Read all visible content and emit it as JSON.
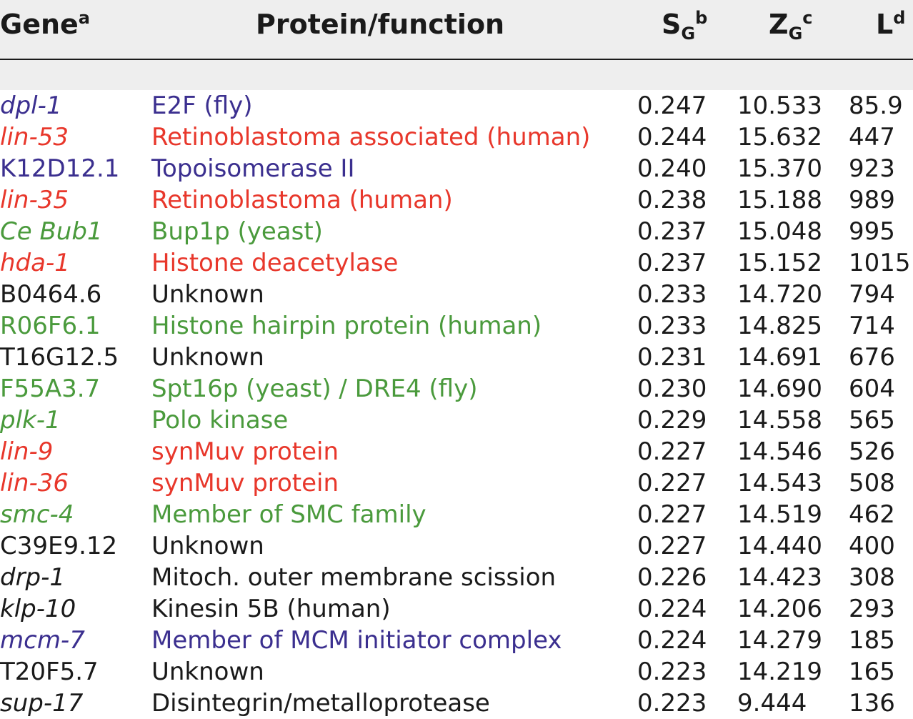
{
  "colors": {
    "red": "#e8372b",
    "purple": "#3b2f8f",
    "green": "#4a9a3c",
    "black": "#1a1a1a",
    "header_bg": "#eeeeee"
  },
  "header": {
    "gene": "Gene",
    "gene_sup": "a",
    "protein": "Protein/function",
    "s_main": "S",
    "s_sub": "G",
    "s_sup": "b",
    "z_main": "Z",
    "z_sub": "G",
    "z_sup": "c",
    "l_main": "L",
    "l_sup": "d"
  },
  "rows": [
    {
      "gene": "dpl-1",
      "italic": true,
      "protein": "E2F (fly)",
      "color": "purple",
      "s": "0.247",
      "z": "10.533",
      "l": "85.9"
    },
    {
      "gene": "lin-53",
      "italic": true,
      "protein": "Retinoblastoma associated (human)",
      "color": "red",
      "s": "0.244",
      "z": "15.632",
      "l": "447"
    },
    {
      "gene": "K12D12.1",
      "italic": false,
      "protein": "Topoisomerase II",
      "color": "purple",
      "s": "0.240",
      "z": "15.370",
      "l": "923"
    },
    {
      "gene": "lin-35",
      "italic": true,
      "protein": "Retinoblastoma (human)",
      "color": "red",
      "s": "0.238",
      "z": "15.188",
      "l": "989"
    },
    {
      "gene": "Ce Bub1",
      "italic": true,
      "protein": "Bup1p (yeast)",
      "color": "green",
      "s": "0.237",
      "z": "15.048",
      "l": "995"
    },
    {
      "gene": "hda-1",
      "italic": true,
      "protein": "Histone deacetylase",
      "color": "red",
      "s": "0.237",
      "z": "15.152",
      "l": "1015"
    },
    {
      "gene": "B0464.6",
      "italic": false,
      "protein": "Unknown",
      "color": "black",
      "s": "0.233",
      "z": "14.720",
      "l": "794"
    },
    {
      "gene": "R06F6.1",
      "italic": false,
      "protein": "Histone hairpin protein (human)",
      "color": "green",
      "s": "0.233",
      "z": "14.825",
      "l": "714"
    },
    {
      "gene": "T16G12.5",
      "italic": false,
      "protein": "Unknown",
      "color": "black",
      "s": "0.231",
      "z": "14.691",
      "l": "676"
    },
    {
      "gene": "F55A3.7",
      "italic": false,
      "protein": "Spt16p (yeast) / DRE4 (fly)",
      "color": "green",
      "s": "0.230",
      "z": "14.690",
      "l": "604"
    },
    {
      "gene": "plk-1",
      "italic": true,
      "protein": "Polo kinase",
      "color": "green",
      "s": "0.229",
      "z": "14.558",
      "l": "565"
    },
    {
      "gene": "lin-9",
      "italic": true,
      "protein": "synMuv protein",
      "color": "red",
      "s": "0.227",
      "z": "14.546",
      "l": "526"
    },
    {
      "gene": "lin-36",
      "italic": true,
      "protein": "synMuv protein",
      "color": "red",
      "s": "0.227",
      "z": "14.543",
      "l": "508"
    },
    {
      "gene": "smc-4",
      "italic": true,
      "protein": "Member of SMC family",
      "color": "green",
      "s": "0.227",
      "z": "14.519",
      "l": "462"
    },
    {
      "gene": "C39E9.12",
      "italic": false,
      "protein": "Unknown",
      "color": "black",
      "s": "0.227",
      "z": "14.440",
      "l": "400"
    },
    {
      "gene": "drp-1",
      "italic": true,
      "protein": "Mitoch. outer membrane scission",
      "color": "black",
      "s": "0.226",
      "z": "14.423",
      "l": "308"
    },
    {
      "gene": "klp-10",
      "italic": true,
      "protein": "Kinesin 5B (human)",
      "color": "black",
      "s": "0.224",
      "z": "14.206",
      "l": "293"
    },
    {
      "gene": "mcm-7",
      "italic": true,
      "protein": "Member of MCM initiator complex",
      "color": "purple",
      "s": "0.224",
      "z": "14.279",
      "l": "185"
    },
    {
      "gene": "T20F5.7",
      "italic": false,
      "protein": "Unknown",
      "color": "black",
      "s": "0.223",
      "z": "14.219",
      "l": "165"
    },
    {
      "gene": "sup-17",
      "italic": true,
      "protein": "Disintegrin/metalloprotease",
      "color": "black",
      "s": "0.223",
      "z": "9.444",
      "l": "136"
    }
  ]
}
